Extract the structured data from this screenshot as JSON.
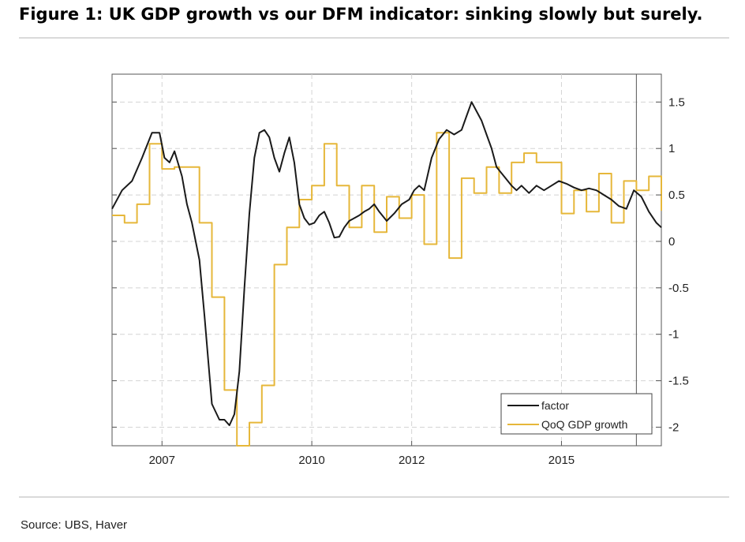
{
  "figure": {
    "title": "Figure 1: UK GDP growth vs our DFM indicator: sinking slowly but surely.",
    "source": "Source: UBS, Haver"
  },
  "chart_data": {
    "type": "line",
    "title": "Figure 1: UK GDP growth vs our DFM indicator: sinking slowly but surely.",
    "xlabel": "",
    "ylabel": "",
    "xlim": [
      2006.0,
      2017.0
    ],
    "ylim": [
      -2.2,
      1.8
    ],
    "x_ticks": [
      2007,
      2010,
      2012,
      2015
    ],
    "x_tick_labels": [
      "2007",
      "2010",
      "2012",
      "2015"
    ],
    "y_ticks": [
      1.5,
      1,
      0.5,
      0,
      -0.5,
      -1,
      -1.5,
      -2
    ],
    "y_tick_labels": [
      "1.5",
      "1",
      "0.5",
      "0",
      "-0.5",
      "-1",
      "-1.5",
      "-2"
    ],
    "y_axis_side": "right",
    "grid": true,
    "legend_position": "bottom-right",
    "vertical_marker_x": 2016.5,
    "colors": {
      "factor": "#1a1a1a",
      "gdp": "#e6b73a",
      "grid": "#d4d4d4",
      "marker": "#555555"
    },
    "series": [
      {
        "name": "factor",
        "x": [
          2006.0,
          2006.2,
          2006.4,
          2006.6,
          2006.8,
          2006.95,
          2007.05,
          2007.15,
          2007.25,
          2007.4,
          2007.5,
          2007.6,
          2007.75,
          2007.85,
          2008.0,
          2008.15,
          2008.25,
          2008.35,
          2008.45,
          2008.55,
          2008.65,
          2008.75,
          2008.85,
          2008.95,
          2009.05,
          2009.15,
          2009.25,
          2009.35,
          2009.45,
          2009.55,
          2009.65,
          2009.75,
          2009.85,
          2009.95,
          2010.05,
          2010.15,
          2010.25,
          2010.35,
          2010.45,
          2010.55,
          2010.65,
          2010.75,
          2010.85,
          2010.95,
          2011.05,
          2011.15,
          2011.25,
          2011.35,
          2011.5,
          2011.65,
          2011.8,
          2011.95,
          2012.05,
          2012.15,
          2012.25,
          2012.4,
          2012.55,
          2012.7,
          2012.85,
          2013.0,
          2013.1,
          2013.2,
          2013.3,
          2013.4,
          2013.5,
          2013.6,
          2013.7,
          2013.85,
          2014.0,
          2014.1,
          2014.2,
          2014.35,
          2014.5,
          2014.65,
          2014.8,
          2014.95,
          2015.1,
          2015.25,
          2015.4,
          2015.55,
          2015.7,
          2015.85,
          2016.0,
          2016.15,
          2016.3,
          2016.45,
          2016.6,
          2016.75,
          2016.9,
          2017.0
        ],
        "values": [
          0.35,
          0.55,
          0.65,
          0.9,
          1.17,
          1.17,
          0.9,
          0.85,
          0.97,
          0.7,
          0.4,
          0.2,
          -0.2,
          -0.8,
          -1.75,
          -1.92,
          -1.92,
          -1.98,
          -1.86,
          -1.4,
          -0.5,
          0.3,
          0.9,
          1.17,
          1.2,
          1.12,
          0.9,
          0.75,
          0.95,
          1.12,
          0.85,
          0.4,
          0.25,
          0.18,
          0.2,
          0.28,
          0.32,
          0.2,
          0.04,
          0.05,
          0.15,
          0.22,
          0.25,
          0.28,
          0.32,
          0.35,
          0.4,
          0.32,
          0.22,
          0.3,
          0.4,
          0.45,
          0.55,
          0.6,
          0.55,
          0.9,
          1.1,
          1.2,
          1.15,
          1.2,
          1.35,
          1.5,
          1.4,
          1.3,
          1.15,
          1.0,
          0.8,
          0.7,
          0.6,
          0.55,
          0.6,
          0.52,
          0.6,
          0.55,
          0.6,
          0.65,
          0.62,
          0.58,
          0.55,
          0.57,
          0.55,
          0.5,
          0.45,
          0.38,
          0.35,
          0.55,
          0.48,
          0.32,
          0.2,
          0.15
        ]
      },
      {
        "name": "QoQ GDP growth",
        "step": true,
        "x": [
          2006.0,
          2006.25,
          2006.5,
          2006.75,
          2007.0,
          2007.25,
          2007.5,
          2007.75,
          2008.0,
          2008.25,
          2008.5,
          2008.75,
          2009.0,
          2009.25,
          2009.5,
          2009.75,
          2010.0,
          2010.25,
          2010.5,
          2010.75,
          2011.0,
          2011.25,
          2011.5,
          2011.75,
          2012.0,
          2012.25,
          2012.5,
          2012.75,
          2013.0,
          2013.25,
          2013.5,
          2013.75,
          2014.0,
          2014.25,
          2014.5,
          2014.75,
          2015.0,
          2015.25,
          2015.5,
          2015.75,
          2016.0,
          2016.25,
          2016.5,
          2016.75,
          2017.0
        ],
        "values": [
          0.28,
          0.2,
          0.4,
          1.05,
          0.78,
          0.8,
          0.8,
          0.2,
          -0.6,
          -1.6,
          -2.2,
          -1.95,
          -1.55,
          -0.25,
          0.15,
          0.45,
          0.6,
          1.05,
          0.6,
          0.15,
          0.6,
          0.1,
          0.48,
          0.25,
          0.5,
          -0.03,
          1.17,
          -0.18,
          0.68,
          0.52,
          0.8,
          0.52,
          0.85,
          0.95,
          0.85,
          0.85,
          0.3,
          0.55,
          0.32,
          0.73,
          0.2,
          0.65,
          0.55,
          0.7,
          0.33
        ]
      }
    ]
  }
}
